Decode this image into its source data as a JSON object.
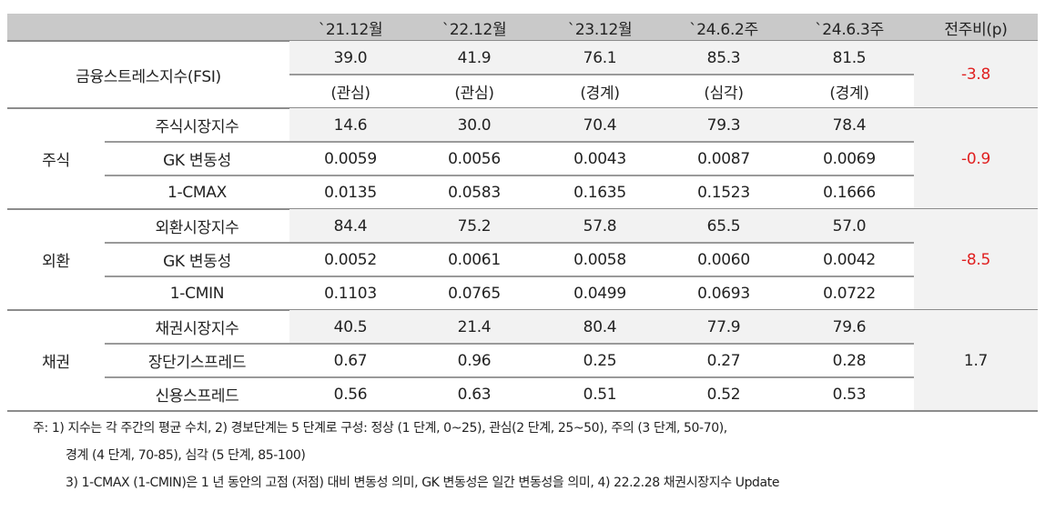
{
  "header": {
    "columns": [
      "`21.12월",
      "`22.12월",
      "`23.12월",
      "`24.6.2주",
      "`24.6.3주",
      "전주비(p)"
    ]
  },
  "fsi": {
    "label": "금융스트레스지수(FSI)",
    "values": [
      "39.0",
      "41.9",
      "76.1",
      "85.3",
      "81.5"
    ],
    "levels": [
      "(관심)",
      "(관심)",
      "(경계)",
      "(심각)",
      "(경계)"
    ],
    "change": "-3.8"
  },
  "groups": [
    {
      "name": "주식",
      "change": "-0.9",
      "rows": [
        {
          "label": "주식시장지수",
          "values": [
            "14.6",
            "30.0",
            "70.4",
            "79.3",
            "78.4"
          ]
        },
        {
          "label": "GK 변동성",
          "values": [
            "0.0059",
            "0.0056",
            "0.0043",
            "0.0087",
            "0.0069"
          ]
        },
        {
          "label": "1-CMAX",
          "values": [
            "0.0135",
            "0.0583",
            "0.1635",
            "0.1523",
            "0.1666"
          ]
        }
      ]
    },
    {
      "name": "외환",
      "change": "-8.5",
      "rows": [
        {
          "label": "외환시장지수",
          "values": [
            "84.4",
            "75.2",
            "57.8",
            "65.5",
            "57.0"
          ]
        },
        {
          "label": "GK 변동성",
          "values": [
            "0.0052",
            "0.0061",
            "0.0058",
            "0.0060",
            "0.0042"
          ]
        },
        {
          "label": "1-CMIN",
          "values": [
            "0.1103",
            "0.0765",
            "0.0499",
            "0.0693",
            "0.0722"
          ]
        }
      ]
    },
    {
      "name": "채권",
      "change": "1.7",
      "rows": [
        {
          "label": "채권시장지수",
          "values": [
            "40.5",
            "21.4",
            "80.4",
            "77.9",
            "79.6"
          ]
        },
        {
          "label": "장단기스프레드",
          "values": [
            "0.67",
            "0.96",
            "0.25",
            "0.27",
            "0.28"
          ]
        },
        {
          "label": "신용스프레드",
          "values": [
            "0.56",
            "0.63",
            "0.51",
            "0.52",
            "0.53"
          ]
        }
      ]
    }
  ],
  "notes": [
    "주: 1) 지수는 각 주간의 평균 수치, 2) 경보단계는 5 단계로 구성: 정상 (1 단계, 0~25), 관심(2 단계, 25~50), 주의 (3 단계, 50-70),",
    "경계 (4 단계, 70-85), 심각 (5 단계, 85-100)",
    "3) 1-CMAX (1-CMIN)은 1 년 동안의 고점 (저점) 대비 변동성 의미, GK 변동성은 일간 변동성을 의미, 4) 22.2.28 채권시장지수 Update"
  ],
  "colors": {
    "header_bg": "#c9c9c9",
    "highlight_bg": "#f2f2f2",
    "negative": "#e02020"
  }
}
